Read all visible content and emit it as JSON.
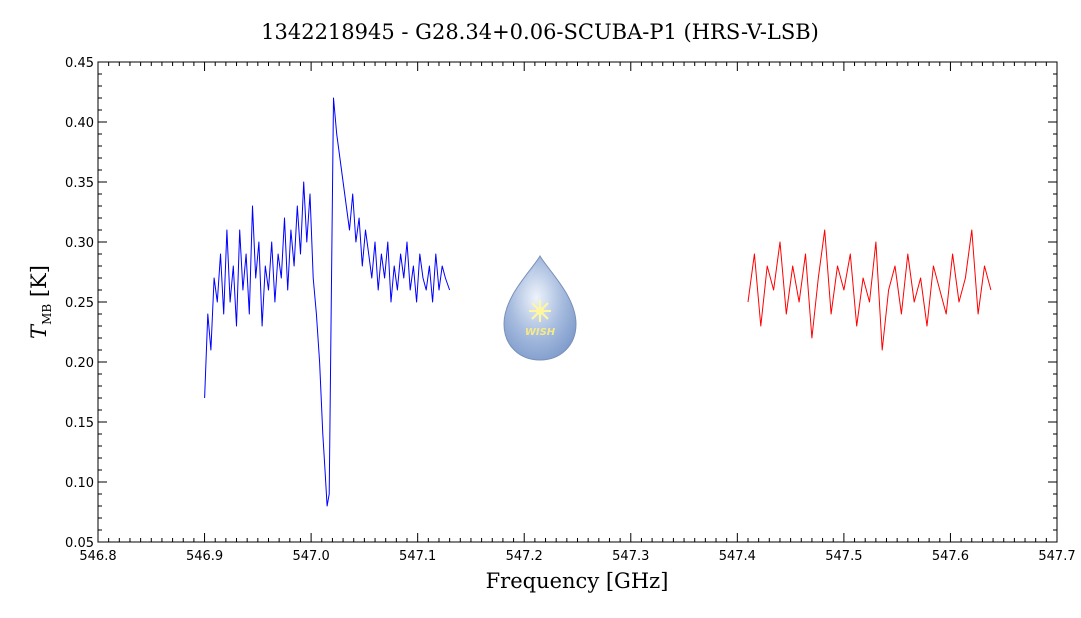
{
  "chart_data": {
    "type": "line",
    "title": "1342218945 - G28.34+0.06-SCUBA-P1 (HRS-V-LSB)",
    "xlabel": "Frequency [GHz]",
    "ylabel_main": "T",
    "ylabel_sub": "MB",
    "ylabel_unit": "[K]",
    "xlim": [
      546.8,
      547.7
    ],
    "ylim": [
      0.05,
      0.45
    ],
    "x_ticks": [
      "546.8",
      "546.9",
      "547.0",
      "547.1",
      "547.2",
      "547.3",
      "547.4",
      "547.5",
      "547.6",
      "547.7"
    ],
    "y_ticks": [
      "0.05",
      "0.10",
      "0.15",
      "0.20",
      "0.25",
      "0.30",
      "0.35",
      "0.40",
      "0.45"
    ],
    "grid": false,
    "logo_text": "WISH",
    "series": [
      {
        "color": "#0000ff",
        "x": [
          546.9,
          546.903,
          546.906,
          546.909,
          546.912,
          546.915,
          546.918,
          546.921,
          546.924,
          546.927,
          546.93,
          546.933,
          546.936,
          546.939,
          546.942,
          546.945,
          546.948,
          546.951,
          546.954,
          546.957,
          546.96,
          546.963,
          546.966,
          546.969,
          546.972,
          546.975,
          546.978,
          546.981,
          546.984,
          546.987,
          546.99,
          546.993,
          546.996,
          546.999,
          547.002,
          547.005,
          547.008,
          547.011,
          547.013,
          547.015,
          547.017,
          547.019,
          547.021,
          547.024,
          547.027,
          547.03,
          547.033,
          547.036,
          547.039,
          547.042,
          547.045,
          547.048,
          547.051,
          547.054,
          547.057,
          547.06,
          547.063,
          547.066,
          547.069,
          547.072,
          547.075,
          547.078,
          547.081,
          547.084,
          547.087,
          547.09,
          547.093,
          547.096,
          547.099,
          547.102,
          547.105,
          547.108,
          547.111,
          547.114,
          547.117,
          547.12,
          547.123,
          547.126,
          547.13
        ],
        "y": [
          0.17,
          0.24,
          0.21,
          0.27,
          0.25,
          0.29,
          0.24,
          0.31,
          0.25,
          0.28,
          0.23,
          0.31,
          0.26,
          0.29,
          0.24,
          0.33,
          0.27,
          0.3,
          0.23,
          0.28,
          0.26,
          0.3,
          0.25,
          0.29,
          0.27,
          0.32,
          0.26,
          0.31,
          0.28,
          0.33,
          0.29,
          0.35,
          0.3,
          0.34,
          0.27,
          0.24,
          0.2,
          0.14,
          0.11,
          0.08,
          0.09,
          0.26,
          0.42,
          0.39,
          0.37,
          0.35,
          0.33,
          0.31,
          0.34,
          0.3,
          0.32,
          0.28,
          0.31,
          0.29,
          0.27,
          0.3,
          0.26,
          0.29,
          0.27,
          0.3,
          0.25,
          0.28,
          0.26,
          0.29,
          0.27,
          0.3,
          0.26,
          0.28,
          0.25,
          0.29,
          0.27,
          0.26,
          0.28,
          0.25,
          0.29,
          0.26,
          0.28,
          0.27,
          0.26
        ]
      },
      {
        "color": "#ff0000",
        "x": [
          547.41,
          547.416,
          547.422,
          547.428,
          547.434,
          547.44,
          547.446,
          547.452,
          547.458,
          547.464,
          547.47,
          547.476,
          547.482,
          547.488,
          547.494,
          547.5,
          547.506,
          547.512,
          547.518,
          547.524,
          547.53,
          547.536,
          547.542,
          547.548,
          547.554,
          547.56,
          547.566,
          547.572,
          547.578,
          547.584,
          547.59,
          547.596,
          547.602,
          547.608,
          547.614,
          547.62,
          547.626,
          547.632,
          547.638
        ],
        "y": [
          0.25,
          0.29,
          0.23,
          0.28,
          0.26,
          0.3,
          0.24,
          0.28,
          0.25,
          0.29,
          0.22,
          0.27,
          0.31,
          0.24,
          0.28,
          0.26,
          0.29,
          0.23,
          0.27,
          0.25,
          0.3,
          0.21,
          0.26,
          0.28,
          0.24,
          0.29,
          0.25,
          0.27,
          0.23,
          0.28,
          0.26,
          0.24,
          0.29,
          0.25,
          0.27,
          0.31,
          0.24,
          0.28,
          0.26
        ]
      }
    ]
  }
}
